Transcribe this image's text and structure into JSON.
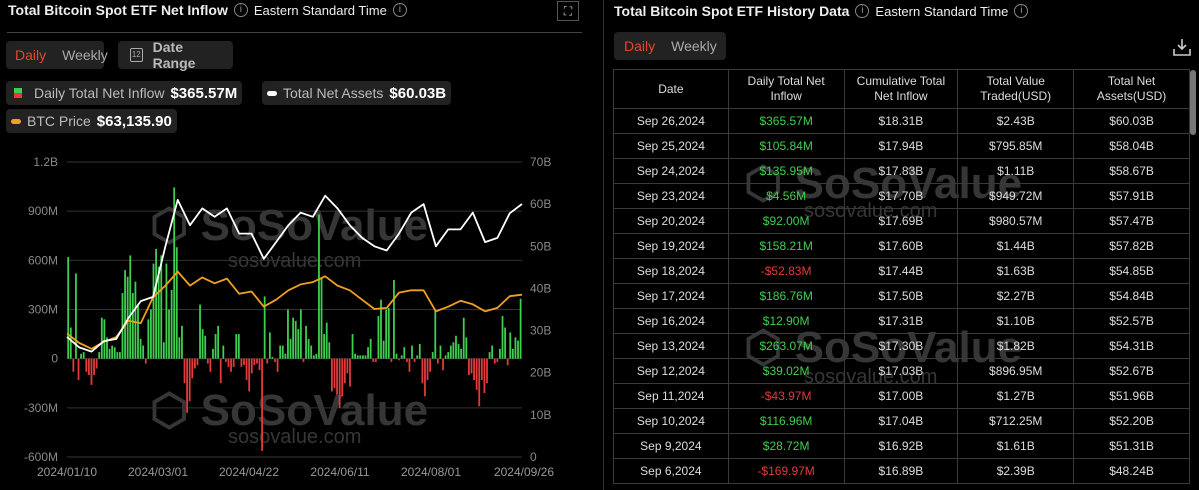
{
  "left": {
    "title": "Total Bitcoin Spot ETF Net Inflow",
    "timezone": "Eastern Standard Time",
    "tabs": [
      {
        "label": "Daily",
        "active": true
      },
      {
        "label": "Weekly",
        "active": false
      }
    ],
    "date_range_label": "Date Range",
    "calendar_day": "12",
    "legend": [
      {
        "label": "Daily Total Net Inflow",
        "value": "$365.57M"
      },
      {
        "label": "Total Net Assets",
        "value": "$60.03B"
      },
      {
        "label": "BTC Price",
        "value": "$63,135.90"
      }
    ],
    "watermark": {
      "brand": "SoSoValue",
      "url": "sosovalue.com"
    }
  },
  "colors": {
    "positive": "#3fcf4f",
    "negative": "#e43a3a",
    "assets_line": "#ffffff",
    "btc_line": "#f0a020",
    "accent": "#e5462c"
  },
  "chart_data": {
    "type": "bar+line",
    "left_axis": {
      "ticks": [
        "1.2B",
        "900M",
        "600M",
        "300M",
        "0",
        "-300M",
        "-600M"
      ],
      "range_millions": [
        -600,
        1200
      ]
    },
    "right_axis": {
      "ticks": [
        "70B",
        "60B",
        "50B",
        "40B",
        "30B",
        "20B",
        "10B",
        "0"
      ],
      "range_billions": [
        0,
        70
      ]
    },
    "x_ticks": [
      "2024/01/10",
      "2024/03/01",
      "2024/04/22",
      "2024/06/11",
      "2024/08/01",
      "2024/09/26"
    ],
    "daily_net_inflow_millions": [
      620,
      190,
      -80,
      520,
      -130,
      30,
      40,
      -80,
      -100,
      -160,
      -100,
      -60,
      40,
      250,
      240,
      130,
      60,
      80,
      70,
      40,
      40,
      400,
      540,
      500,
      630,
      400,
      470,
      330,
      120,
      80,
      -30,
      240,
      300,
      580,
      670,
      560,
      630,
      100,
      580,
      300,
      420,
      1045,
      680,
      130,
      200,
      -150,
      -330,
      -260,
      -120,
      -60,
      -40,
      330,
      180,
      140,
      -30,
      -80,
      60,
      150,
      200,
      -150,
      80,
      -20,
      -50,
      -80,
      -50,
      150,
      150,
      -50,
      -40,
      -130,
      -200,
      -90,
      -40,
      -30,
      -70,
      -563,
      380,
      -30,
      160,
      10,
      -20,
      -80,
      80,
      80,
      30,
      300,
      120,
      250,
      230,
      180,
      300,
      -20,
      200,
      120,
      80,
      20,
      30,
      880,
      490,
      150,
      220,
      100,
      -200,
      -180,
      -220,
      -300,
      -230,
      -150,
      -90,
      -170,
      150,
      30,
      20,
      20,
      20,
      20,
      70,
      120,
      -20,
      -20,
      260,
      360,
      110,
      300,
      310,
      -20,
      480,
      30,
      -10,
      20,
      70,
      -20,
      -80,
      80,
      -20,
      20,
      90,
      -150,
      -230,
      -130,
      -80,
      40,
      300,
      -30,
      80,
      -70,
      20,
      40,
      80,
      100,
      140,
      90,
      60,
      250,
      130,
      -100,
      -90,
      -130,
      -190,
      -290,
      -130,
      -210,
      -150,
      40,
      80,
      -30,
      -20,
      60,
      260,
      190,
      -40,
      160,
      60,
      130,
      110,
      365.57
    ],
    "total_net_assets_billions": {
      "x": [
        "2024-01-11",
        "2024-01-18",
        "2024-01-25",
        "2024-02-01",
        "2024-02-08",
        "2024-02-15",
        "2024-02-22",
        "2024-02-29",
        "2024-03-07",
        "2024-03-14",
        "2024-03-21",
        "2024-03-28",
        "2024-04-04",
        "2024-04-11",
        "2024-04-18",
        "2024-04-25",
        "2024-05-02",
        "2024-05-09",
        "2024-05-16",
        "2024-05-23",
        "2024-05-30",
        "2024-06-06",
        "2024-06-13",
        "2024-06-20",
        "2024-06-27",
        "2024-07-04",
        "2024-07-11",
        "2024-07-18",
        "2024-07-25",
        "2024-08-01",
        "2024-08-08",
        "2024-08-15",
        "2024-08-22",
        "2024-08-29",
        "2024-09-05",
        "2024-09-12",
        "2024-09-19",
        "2024-09-26"
      ],
      "values": [
        28.5,
        26,
        25,
        27.5,
        28,
        33,
        37,
        38,
        50,
        61,
        55,
        59,
        57,
        59,
        53,
        53,
        47,
        51,
        55,
        58,
        57,
        62,
        59,
        55,
        52,
        50,
        49,
        53,
        58,
        60,
        50,
        54,
        54,
        58,
        51,
        52,
        57.82,
        60.03
      ]
    },
    "btc_price_usd": {
      "values": [
        46500,
        42500,
        40000,
        43000,
        45000,
        52000,
        51000,
        62000,
        67000,
        73000,
        67000,
        70500,
        68000,
        70000,
        63500,
        64500,
        58000,
        61000,
        65000,
        67500,
        68500,
        71000,
        67000,
        65000,
        61000,
        57000,
        57500,
        64000,
        65000,
        65000,
        56000,
        58000,
        60500,
        59000,
        56000,
        57500,
        62500,
        63135.9
      ]
    },
    "grid": true
  },
  "right": {
    "title": "Total Bitcoin Spot ETF History Data",
    "timezone": "Eastern Standard Time",
    "tabs": [
      {
        "label": "Daily",
        "active": true
      },
      {
        "label": "Weekly",
        "active": false
      }
    ],
    "columns": [
      [
        "Date"
      ],
      [
        "Daily Total Net",
        "Inflow"
      ],
      [
        "Cumulative Total",
        "Net Inflow"
      ],
      [
        "Total Value",
        "Traded(USD)"
      ],
      [
        "Total Net",
        "Assets(USD)"
      ]
    ],
    "rows": [
      [
        "Sep 26,2024",
        "$365.57M",
        "$18.31B",
        "$2.43B",
        "$60.03B"
      ],
      [
        "Sep 25,2024",
        "$105.84M",
        "$17.94B",
        "$795.85M",
        "$58.04B"
      ],
      [
        "Sep 24,2024",
        "$135.95M",
        "$17.83B",
        "$1.11B",
        "$58.67B"
      ],
      [
        "Sep 23,2024",
        "$4.56M",
        "$17.70B",
        "$949.72M",
        "$57.91B"
      ],
      [
        "Sep 20,2024",
        "$92.00M",
        "$17.69B",
        "$980.57M",
        "$57.47B"
      ],
      [
        "Sep 19,2024",
        "$158.21M",
        "$17.60B",
        "$1.44B",
        "$57.82B"
      ],
      [
        "Sep 18,2024",
        "-$52.83M",
        "$17.44B",
        "$1.63B",
        "$54.85B"
      ],
      [
        "Sep 17,2024",
        "$186.76M",
        "$17.50B",
        "$2.27B",
        "$54.84B"
      ],
      [
        "Sep 16,2024",
        "$12.90M",
        "$17.31B",
        "$1.10B",
        "$52.57B"
      ],
      [
        "Sep 13,2024",
        "$263.07M",
        "$17.30B",
        "$1.82B",
        "$54.31B"
      ],
      [
        "Sep 12,2024",
        "$39.02M",
        "$17.03B",
        "$896.95M",
        "$52.67B"
      ],
      [
        "Sep 11,2024",
        "-$43.97M",
        "$17.00B",
        "$1.27B",
        "$51.96B"
      ],
      [
        "Sep 10,2024",
        "$116.96M",
        "$17.04B",
        "$712.25M",
        "$52.20B"
      ],
      [
        "Sep 9,2024",
        "$28.72M",
        "$16.92B",
        "$1.61B",
        "$51.31B"
      ],
      [
        "Sep 6,2024",
        "-$169.97M",
        "$16.89B",
        "$2.39B",
        "$48.24B"
      ]
    ]
  }
}
